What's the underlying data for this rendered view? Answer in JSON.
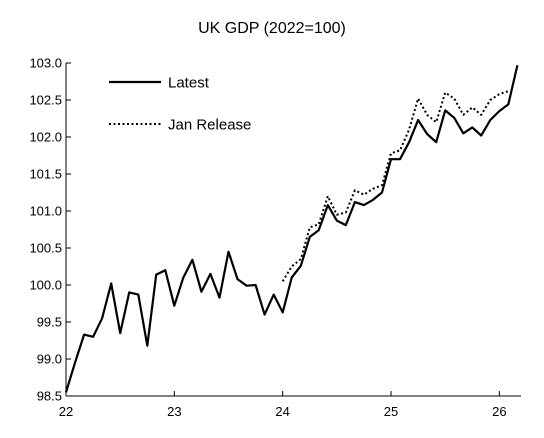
{
  "chart_data": {
    "type": "line",
    "title": "UK GDP (2022=100)",
    "xlabel": "",
    "ylabel": "",
    "xlim": [
      22.0,
      26.2
    ],
    "ylim": [
      98.5,
      103.0
    ],
    "x_ticks": [
      22,
      23,
      24,
      25,
      26
    ],
    "x_tick_labels": [
      "22",
      "23",
      "24",
      "25",
      "26"
    ],
    "y_ticks": [
      98.5,
      99.0,
      99.5,
      100.0,
      100.5,
      101.0,
      101.5,
      102.0,
      102.5,
      103.0
    ],
    "y_tick_labels": [
      "98.5",
      "99.0",
      "99.5",
      "100.0",
      "100.5",
      "101.0",
      "101.5",
      "102.0",
      "102.5",
      "103.0"
    ],
    "legend_position": "top-left",
    "grid": false,
    "series": [
      {
        "name": "Latest",
        "style": "solid",
        "color": "#000000",
        "x": [
          22.0,
          22.083,
          22.167,
          22.25,
          22.333,
          22.417,
          22.5,
          22.583,
          22.667,
          22.75,
          22.833,
          22.917,
          23.0,
          23.083,
          23.167,
          23.25,
          23.333,
          23.417,
          23.5,
          23.583,
          23.667,
          23.75,
          23.833,
          23.917,
          24.0,
          24.083,
          24.167,
          24.25,
          24.333,
          24.417,
          24.5,
          24.583,
          24.667,
          24.75,
          24.833,
          24.917,
          25.0,
          25.083,
          25.167,
          25.25,
          25.333,
          25.417,
          25.5,
          25.583,
          25.667,
          25.75,
          25.833,
          25.917,
          26.0,
          26.083,
          26.167
        ],
        "values": [
          98.55,
          98.95,
          99.33,
          99.3,
          99.55,
          100.02,
          99.35,
          99.9,
          99.87,
          99.18,
          100.14,
          100.2,
          99.72,
          100.1,
          100.34,
          99.91,
          100.15,
          99.83,
          100.45,
          100.08,
          99.99,
          100.0,
          99.6,
          99.87,
          99.63,
          100.1,
          100.26,
          100.65,
          100.74,
          101.08,
          100.87,
          100.81,
          101.12,
          101.08,
          101.15,
          101.25,
          101.7,
          101.7,
          101.93,
          102.23,
          102.04,
          101.93,
          102.36,
          102.26,
          102.05,
          102.13,
          102.02,
          102.23,
          102.35,
          102.44,
          102.97
        ]
      },
      {
        "name": "Jan Release",
        "style": "dotted",
        "color": "#000000",
        "x": [
          24.0,
          24.083,
          24.167,
          24.25,
          24.333,
          24.417,
          24.5,
          24.583,
          24.667,
          24.75,
          24.833,
          24.917,
          25.0,
          25.083,
          25.167,
          25.25,
          25.333,
          25.417,
          25.5,
          25.583,
          25.667,
          25.75,
          25.833,
          25.917,
          26.0,
          26.083
        ],
        "values": [
          100.05,
          100.25,
          100.35,
          100.78,
          100.82,
          101.2,
          100.95,
          100.98,
          101.28,
          101.22,
          101.3,
          101.35,
          101.78,
          101.82,
          102.1,
          102.52,
          102.3,
          102.2,
          102.6,
          102.52,
          102.3,
          102.4,
          102.3,
          102.5,
          102.58,
          102.62
        ]
      }
    ]
  }
}
